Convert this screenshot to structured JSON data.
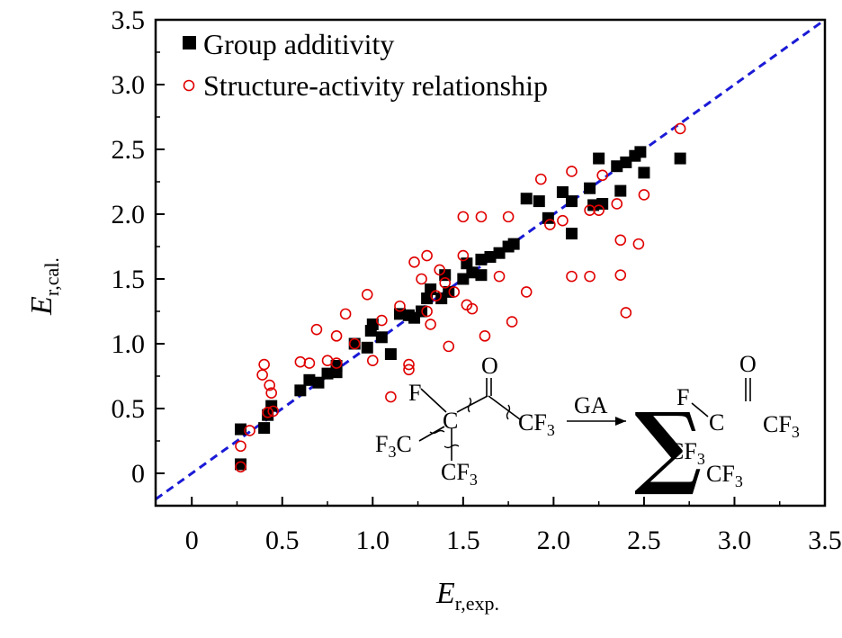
{
  "chart_data": {
    "type": "scatter",
    "title": "",
    "xlabel": {
      "main": "E",
      "sub": "r,exp."
    },
    "ylabel": {
      "main": "E",
      "sub": "r,cal."
    },
    "xlim": [
      -0.2,
      3.5
    ],
    "ylim": [
      -0.25,
      3.5
    ],
    "x_ticks": [
      "0",
      "0.5",
      "1.0",
      "1.5",
      "2.0",
      "2.5",
      "3.0",
      "3.5"
    ],
    "y_ticks": [
      "0",
      "0.5",
      "1.0",
      "1.5",
      "2.0",
      "2.5",
      "3.0",
      "3.5"
    ],
    "reference_line": {
      "style": "dashed",
      "color": "#1a1ad6",
      "x": [
        -0.2,
        3.5
      ],
      "y": [
        -0.2,
        3.5
      ]
    },
    "legend_position": "top-left",
    "series": [
      {
        "name": "Group additivity",
        "marker": "filled-square",
        "color": "#000000",
        "points": [
          [
            0.27,
            0.34
          ],
          [
            0.27,
            0.07
          ],
          [
            0.4,
            0.35
          ],
          [
            0.42,
            0.45
          ],
          [
            0.44,
            0.52
          ],
          [
            0.6,
            0.64
          ],
          [
            0.65,
            0.72
          ],
          [
            0.7,
            0.7
          ],
          [
            0.75,
            0.77
          ],
          [
            0.8,
            0.78
          ],
          [
            0.8,
            0.83
          ],
          [
            0.9,
            1.0
          ],
          [
            0.97,
            0.97
          ],
          [
            0.99,
            1.1
          ],
          [
            1.0,
            1.15
          ],
          [
            1.05,
            1.05
          ],
          [
            1.1,
            0.92
          ],
          [
            1.15,
            1.23
          ],
          [
            1.2,
            1.22
          ],
          [
            1.23,
            1.2
          ],
          [
            1.27,
            1.25
          ],
          [
            1.3,
            1.35
          ],
          [
            1.32,
            1.42
          ],
          [
            1.38,
            1.35
          ],
          [
            1.4,
            1.53
          ],
          [
            1.42,
            1.4
          ],
          [
            1.5,
            1.5
          ],
          [
            1.52,
            1.62
          ],
          [
            1.55,
            1.55
          ],
          [
            1.6,
            1.53
          ],
          [
            1.6,
            1.65
          ],
          [
            1.65,
            1.67
          ],
          [
            1.7,
            1.7
          ],
          [
            1.75,
            1.75
          ],
          [
            1.78,
            1.77
          ],
          [
            1.85,
            2.12
          ],
          [
            1.92,
            2.1
          ],
          [
            1.97,
            1.97
          ],
          [
            2.05,
            2.17
          ],
          [
            2.1,
            2.1
          ],
          [
            2.1,
            1.85
          ],
          [
            2.2,
            2.2
          ],
          [
            2.22,
            2.07
          ],
          [
            2.25,
            2.43
          ],
          [
            2.27,
            2.08
          ],
          [
            2.35,
            2.37
          ],
          [
            2.37,
            2.18
          ],
          [
            2.4,
            2.4
          ],
          [
            2.45,
            2.45
          ],
          [
            2.48,
            2.48
          ],
          [
            2.5,
            2.32
          ],
          [
            2.7,
            2.43
          ]
        ]
      },
      {
        "name": "Structure-activity relationship",
        "marker": "open-circle",
        "color": "#e00000",
        "points": [
          [
            0.27,
            0.21
          ],
          [
            0.27,
            0.05
          ],
          [
            0.32,
            0.33
          ],
          [
            0.39,
            0.76
          ],
          [
            0.4,
            0.84
          ],
          [
            0.42,
            0.47
          ],
          [
            0.43,
            0.68
          ],
          [
            0.44,
            0.62
          ],
          [
            0.45,
            0.48
          ],
          [
            0.6,
            0.86
          ],
          [
            0.65,
            0.85
          ],
          [
            0.69,
            1.11
          ],
          [
            0.75,
            0.87
          ],
          [
            0.8,
            1.06
          ],
          [
            0.8,
            0.85
          ],
          [
            0.85,
            1.23
          ],
          [
            0.9,
            1.0
          ],
          [
            0.97,
            1.38
          ],
          [
            1.0,
            0.87
          ],
          [
            1.05,
            1.18
          ],
          [
            1.1,
            0.59
          ],
          [
            1.15,
            1.29
          ],
          [
            1.2,
            0.84
          ],
          [
            1.2,
            0.8
          ],
          [
            1.23,
            1.63
          ],
          [
            1.27,
            1.5
          ],
          [
            1.3,
            1.68
          ],
          [
            1.3,
            1.25
          ],
          [
            1.32,
            1.15
          ],
          [
            1.35,
            1.37
          ],
          [
            1.37,
            1.57
          ],
          [
            1.4,
            1.47
          ],
          [
            1.42,
            0.98
          ],
          [
            1.45,
            1.4
          ],
          [
            1.5,
            1.98
          ],
          [
            1.5,
            1.68
          ],
          [
            1.52,
            1.3
          ],
          [
            1.55,
            1.27
          ],
          [
            1.6,
            1.98
          ],
          [
            1.62,
            1.06
          ],
          [
            1.7,
            1.52
          ],
          [
            1.75,
            1.98
          ],
          [
            1.77,
            1.17
          ],
          [
            1.85,
            1.4
          ],
          [
            1.93,
            2.27
          ],
          [
            1.98,
            1.92
          ],
          [
            2.05,
            1.95
          ],
          [
            2.1,
            2.33
          ],
          [
            2.1,
            1.52
          ],
          [
            2.2,
            1.52
          ],
          [
            2.2,
            2.03
          ],
          [
            2.25,
            2.03
          ],
          [
            2.27,
            2.3
          ],
          [
            2.35,
            2.08
          ],
          [
            2.37,
            1.8
          ],
          [
            2.37,
            1.53
          ],
          [
            2.4,
            1.24
          ],
          [
            2.47,
            1.77
          ],
          [
            2.5,
            2.15
          ],
          [
            2.7,
            2.66
          ]
        ]
      }
    ]
  },
  "inset": {
    "left_molecule": {
      "o": "O",
      "f": "F",
      "c": "C",
      "f3c_main": "F",
      "f3c_sub": "3",
      "f3c_c": "C",
      "cf3_main": "CF",
      "cf3_sub": "3"
    },
    "arrow_label": "GA",
    "sum_symbol": "∑",
    "right_group": {
      "o": "O",
      "f": "F",
      "c": "C",
      "cf3_main": "CF",
      "cf3_sub": "3"
    }
  }
}
